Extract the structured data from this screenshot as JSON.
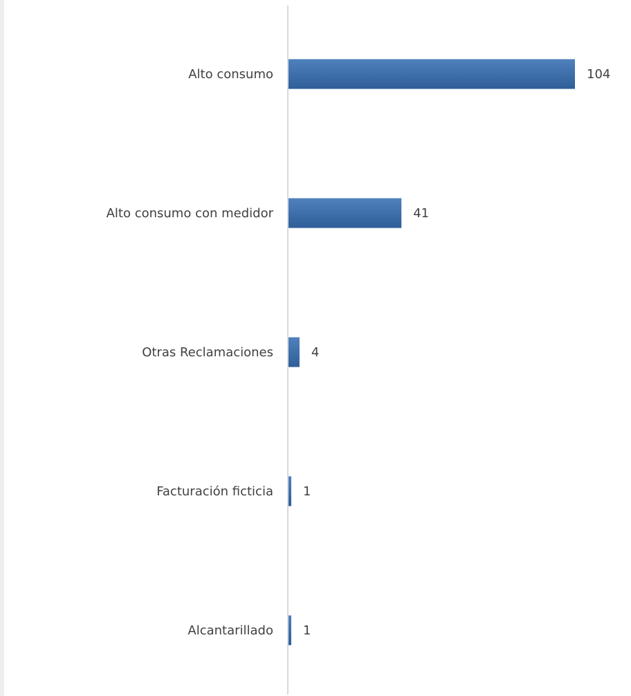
{
  "chart_data": {
    "type": "bar",
    "orientation": "horizontal",
    "categories": [
      "Alto consumo",
      "Alto consumo con medidor",
      "Otras Reclamaciones",
      "Facturación ficticia",
      "Alcantarillado"
    ],
    "values": [
      104,
      41,
      4,
      1,
      1
    ],
    "data_labels": [
      "104",
      "41",
      "4",
      "1",
      "1"
    ],
    "title": "",
    "xlabel": "",
    "ylabel": "",
    "xlim": [
      0,
      104
    ],
    "grid": false,
    "legend": "none",
    "colors": {
      "bar_top": "#4f81bd",
      "bar_bottom": "#2f5e98",
      "axis": "#d9d9d9",
      "text": "#404040"
    }
  }
}
